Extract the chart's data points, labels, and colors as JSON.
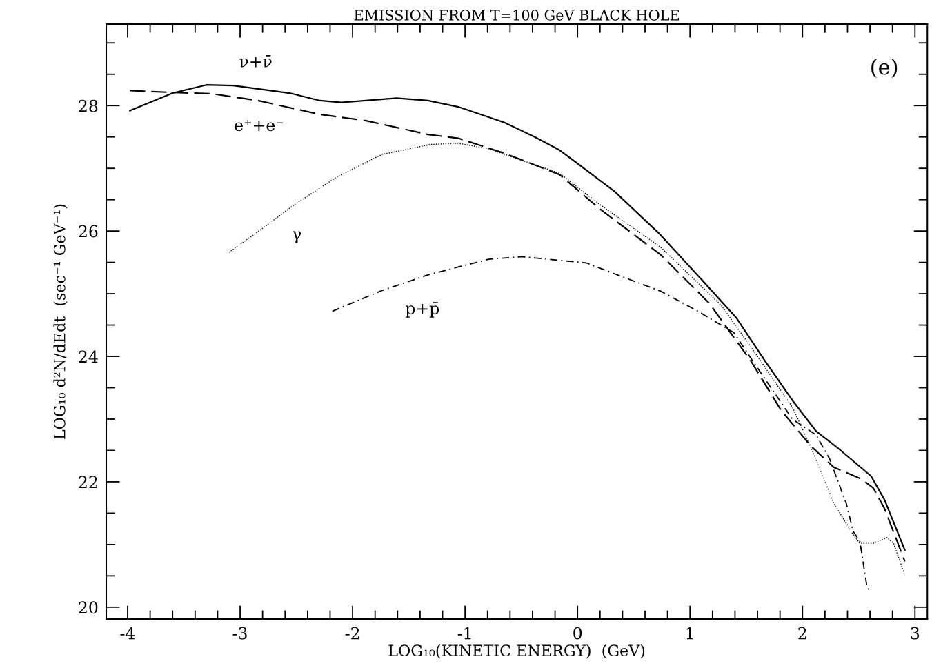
{
  "chart_data": {
    "type": "line",
    "title": "EMISSION FROM T=100 GeV BLACK HOLE",
    "xlabel": "LOG₁₀(KINETIC ENERGY)  (GeV)",
    "ylabel": "LOG₁₀ d²N/dEdt  (sec⁻¹ GeV⁻¹)",
    "xlim": [
      -4.19,
      3.11
    ],
    "ylim": [
      19.81,
      29.3
    ],
    "xticks": [
      -4,
      {
        "value": -3.8,
        "label": null
      },
      {
        "value": -3.6,
        "label": null
      },
      {
        "value": -3.4,
        "label": null
      },
      {
        "value": -3.2,
        "label": null
      },
      -3,
      {
        "value": -2.8,
        "label": null
      },
      {
        "value": -2.6,
        "label": null
      },
      {
        "value": -2.4,
        "label": null
      },
      {
        "value": -2.2,
        "label": null
      },
      -2,
      {
        "value": -1.8,
        "label": null
      },
      {
        "value": -1.6,
        "label": null
      },
      {
        "value": -1.4,
        "label": null
      },
      {
        "value": -1.2,
        "label": null
      },
      -1,
      {
        "value": -0.8,
        "label": null
      },
      {
        "value": -0.6,
        "label": null
      },
      {
        "value": -0.4,
        "label": null
      },
      {
        "value": -0.2,
        "label": null
      },
      0,
      {
        "value": 0.2,
        "label": null
      },
      {
        "value": 0.4,
        "label": null
      },
      {
        "value": 0.6,
        "label": null
      },
      {
        "value": 0.8,
        "label": null
      },
      1,
      {
        "value": 1.2,
        "label": null
      },
      {
        "value": 1.4,
        "label": null
      },
      {
        "value": 1.6,
        "label": null
      },
      {
        "value": 1.8,
        "label": null
      },
      2,
      {
        "value": 2.2,
        "label": null
      },
      {
        "value": 2.4,
        "label": null
      },
      {
        "value": 2.6,
        "label": null
      },
      {
        "value": 2.8,
        "label": null
      },
      3
    ],
    "yticks": [
      20,
      {
        "value": 20.5,
        "label": null
      },
      {
        "value": 21,
        "label": null
      },
      {
        "value": 21.5,
        "label": null
      },
      22,
      {
        "value": 22.5,
        "label": null
      },
      {
        "value": 23,
        "label": null
      },
      {
        "value": 23.5,
        "label": null
      },
      24,
      {
        "value": 24.5,
        "label": null
      },
      {
        "value": 25,
        "label": null
      },
      {
        "value": 25.5,
        "label": null
      },
      26,
      {
        "value": 26.5,
        "label": null
      },
      {
        "value": 27,
        "label": null
      },
      {
        "value": 27.5,
        "label": null
      },
      28,
      {
        "value": 28.5,
        "label": null
      },
      {
        "value": 29,
        "label": null
      }
    ],
    "grid": false,
    "legend": false,
    "series": [
      {
        "color": "#000000",
        "line_style": "solid",
        "x": [
          -3.98,
          -3.6,
          -3.3,
          -3.06,
          -2.56,
          -2.29,
          -2.1,
          -1.61,
          -1.33,
          -1.06,
          -0.65,
          -0.38,
          -0.16,
          -0.01,
          0.33,
          0.72,
          1.06,
          1.41,
          1.67,
          1.91,
          2.12,
          2.32,
          2.61,
          2.73,
          2.91
        ],
        "values": [
          27.92,
          28.2,
          28.33,
          28.32,
          28.2,
          28.08,
          28.05,
          28.12,
          28.08,
          27.98,
          27.73,
          27.5,
          27.29,
          27.09,
          26.63,
          25.97,
          25.31,
          24.62,
          23.92,
          23.3,
          22.81,
          22.53,
          22.09,
          21.71,
          20.91
        ]
      },
      {
        "color": "#000000",
        "line_style": "dashed",
        "x": [
          -3.98,
          -3.6,
          -3.25,
          -2.84,
          -2.29,
          -1.88,
          -1.33,
          -1.06,
          -0.65,
          -0.16,
          0.2,
          0.74,
          1.17,
          1.54,
          1.81,
          2.08,
          2.28,
          2.53,
          2.63,
          2.73,
          2.91
        ],
        "values": [
          28.24,
          28.21,
          28.19,
          28.08,
          27.86,
          27.76,
          27.54,
          27.48,
          27.24,
          26.9,
          26.35,
          25.62,
          24.85,
          23.93,
          23.14,
          22.56,
          22.23,
          22.04,
          21.9,
          21.57,
          20.73
        ]
      },
      {
        "color": "#000000",
        "line_style": "dotted",
        "x": [
          -3.1,
          -2.84,
          -2.51,
          -2.15,
          -1.74,
          -1.31,
          -1.06,
          -0.79,
          -0.16,
          0.2,
          0.74,
          1.28,
          1.6,
          1.91,
          2.08,
          2.28,
          2.45,
          2.51,
          2.63,
          2.75,
          2.81,
          2.91
        ],
        "values": [
          25.66,
          25.99,
          26.43,
          26.85,
          27.22,
          27.38,
          27.4,
          27.31,
          26.92,
          26.42,
          25.74,
          24.81,
          24.0,
          23.19,
          22.53,
          21.65,
          21.16,
          21.02,
          21.02,
          21.11,
          21.02,
          20.51
        ]
      },
      {
        "color": "#000000",
        "line_style": "dashdot",
        "x": [
          -2.18,
          -1.74,
          -1.33,
          -0.79,
          -0.49,
          0.08,
          0.31,
          0.74,
          1.06,
          1.39,
          1.56,
          1.91,
          2.12,
          2.24,
          2.39,
          2.45,
          2.51,
          2.57,
          2.6
        ],
        "values": [
          24.72,
          25.05,
          25.3,
          25.55,
          25.59,
          25.49,
          25.33,
          25.04,
          24.73,
          24.38,
          23.92,
          23.0,
          22.75,
          22.37,
          21.65,
          21.21,
          21.05,
          20.36,
          20.23
        ]
      }
    ],
    "annotations": [
      "ν+ν̄",
      "e⁺+e⁻",
      "γ",
      "p+p̄",
      "(e)"
    ]
  }
}
